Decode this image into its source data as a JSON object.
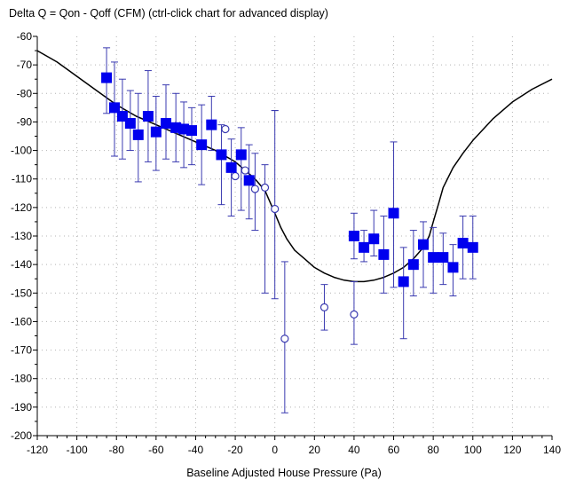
{
  "chart_data": {
    "type": "scatter",
    "title": "Delta Q = Qon - Qoff (CFM) (ctrl-click chart for advanced display)",
    "xlabel": "Baseline Adjusted House Pressure (Pa)",
    "ylabel": "",
    "xlim": [
      -120,
      140
    ],
    "ylim": [
      -200,
      -60
    ],
    "xticks": [
      -120,
      -100,
      -80,
      -60,
      -40,
      -20,
      0,
      20,
      40,
      60,
      80,
      100,
      120,
      140
    ],
    "yticks": [
      -60,
      -70,
      -80,
      -90,
      -100,
      -110,
      -120,
      -130,
      -140,
      -150,
      -160,
      -170,
      -180,
      -190,
      -200
    ],
    "grid": true,
    "colors": {
      "markers": "#0000ee",
      "errorbars": "#3a3ab0",
      "curve": "#000000",
      "grid": "#b4b4b4"
    },
    "filled_points": [
      {
        "x": -85,
        "y": -74.5,
        "low": -87,
        "high": -64
      },
      {
        "x": -81,
        "y": -85,
        "low": -102,
        "high": -69
      },
      {
        "x": -77,
        "y": -88,
        "low": -103,
        "high": -75
      },
      {
        "x": -73,
        "y": -90.5,
        "low": -100,
        "high": -79
      },
      {
        "x": -69,
        "y": -94.5,
        "low": -111,
        "high": -80
      },
      {
        "x": -64,
        "y": -88,
        "low": -104,
        "high": -72
      },
      {
        "x": -60,
        "y": -93.5,
        "low": -107,
        "high": -81
      },
      {
        "x": -55,
        "y": -90.5,
        "low": -103,
        "high": -77
      },
      {
        "x": -50,
        "y": -92,
        "low": -104,
        "high": -80
      },
      {
        "x": -46,
        "y": -92.5,
        "low": -106,
        "high": -83
      },
      {
        "x": -42,
        "y": -93,
        "low": -105,
        "high": -85
      },
      {
        "x": -37,
        "y": -98,
        "low": -112,
        "high": -84
      },
      {
        "x": -32,
        "y": -91,
        "low": -100,
        "high": -81
      },
      {
        "x": -27,
        "y": -101.5,
        "low": -119,
        "high": -91
      },
      {
        "x": -22,
        "y": -106,
        "low": -123,
        "high": -96
      },
      {
        "x": -17,
        "y": -101.5,
        "low": -121,
        "high": -92
      },
      {
        "x": -13,
        "y": -110.5,
        "low": -124,
        "high": -98
      },
      {
        "x": 40,
        "y": -130,
        "low": -138,
        "high": -122
      },
      {
        "x": 45,
        "y": -134,
        "low": -139,
        "high": -128
      },
      {
        "x": 50,
        "y": -131,
        "low": -137,
        "high": -121
      },
      {
        "x": 55,
        "y": -136.5,
        "low": -150,
        "high": -123
      },
      {
        "x": 60,
        "y": -122,
        "low": -148,
        "high": -97
      },
      {
        "x": 65,
        "y": -146,
        "low": -166,
        "high": -134
      },
      {
        "x": 70,
        "y": -140,
        "low": -151,
        "high": -128
      },
      {
        "x": 75,
        "y": -133,
        "low": -148,
        "high": -125
      },
      {
        "x": 80,
        "y": -137.5,
        "low": -150,
        "high": -127
      },
      {
        "x": 85,
        "y": -137.5,
        "low": -147,
        "high": -129
      },
      {
        "x": 90,
        "y": -141,
        "low": -151,
        "high": -133
      },
      {
        "x": 95,
        "y": -132.5,
        "low": -145,
        "high": -123
      },
      {
        "x": 100,
        "y": -134,
        "low": -145,
        "high": -123
      }
    ],
    "open_points": [
      {
        "x": -25,
        "y": -92.5
      },
      {
        "x": -20,
        "y": -109
      },
      {
        "x": -15,
        "y": -107
      },
      {
        "x": -10,
        "y": -113.5
      },
      {
        "x": -5,
        "y": -113
      },
      {
        "x": 0,
        "y": -120.5,
        "low": null,
        "high": -86
      },
      {
        "x": 5,
        "y": -166,
        "low": -192,
        "high": -139
      },
      {
        "x": 25,
        "y": -155,
        "low": -163,
        "high": -147
      },
      {
        "x": 40,
        "y": -157.5,
        "low": -168,
        "high": -146
      }
    ],
    "open_errorbars": [
      {
        "x": -10,
        "low": -128,
        "high": -101
      },
      {
        "x": -5,
        "low": -150,
        "high": -105
      },
      {
        "x": 0,
        "low": -152,
        "high": -86
      }
    ],
    "fit_curve": {
      "x": [
        -120,
        -110,
        -100,
        -90,
        -80,
        -70,
        -60,
        -50,
        -40,
        -30,
        -20,
        -10,
        -5,
        0,
        3,
        6,
        10,
        15,
        20,
        25,
        30,
        35,
        40,
        45,
        50,
        55,
        60,
        65,
        70,
        75,
        78,
        80,
        83,
        85,
        90,
        95,
        100,
        110,
        120,
        130,
        140
      ],
      "y": [
        -65,
        -69,
        -74,
        -79,
        -84,
        -88,
        -91,
        -94,
        -97,
        -100,
        -104,
        -110,
        -114,
        -122,
        -127,
        -131,
        -135,
        -138,
        -141,
        -143,
        -144.5,
        -145.5,
        -146,
        -146,
        -145.5,
        -144.5,
        -143,
        -141,
        -138,
        -134,
        -130,
        -125,
        -118,
        -113,
        -106,
        -101,
        -96.5,
        -89,
        -83,
        -78.5,
        -75
      ]
    }
  }
}
